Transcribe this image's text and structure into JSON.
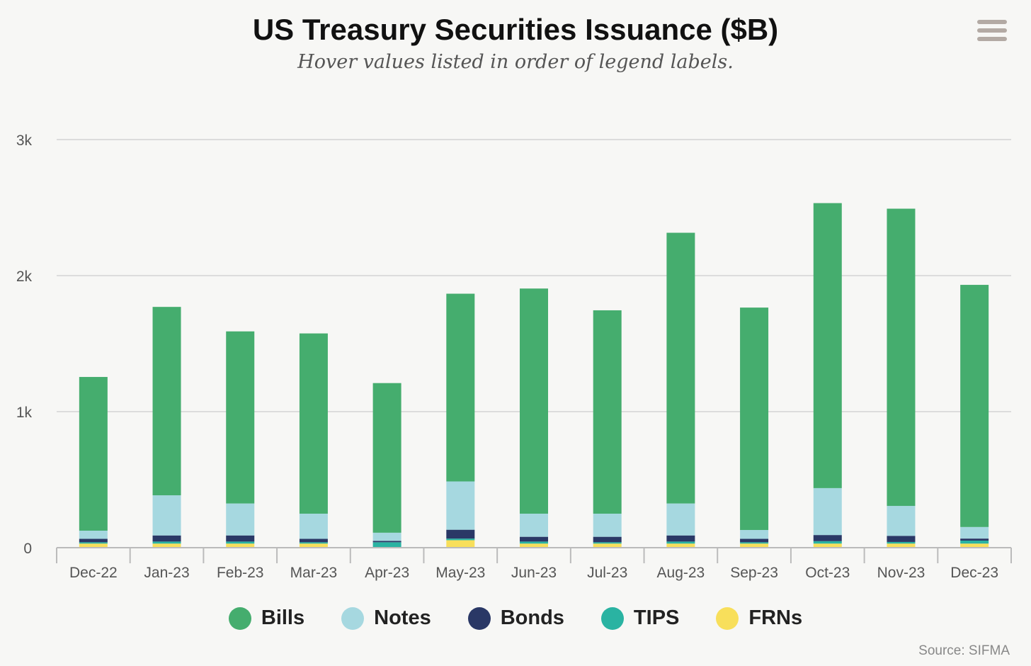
{
  "title": "US Treasury Securities Issuance ($B)",
  "subtitle": "Hover values listed in order of legend labels.",
  "source": "Source: SIFMA",
  "menu_icon": "hamburger-menu-icon",
  "chart_data": {
    "type": "bar",
    "stacked": true,
    "categories": [
      "Dec-22",
      "Jan-23",
      "Feb-23",
      "Mar-23",
      "Apr-23",
      "May-23",
      "Jun-23",
      "Jul-23",
      "Aug-23",
      "Sep-23",
      "Oct-23",
      "Nov-23",
      "Dec-23"
    ],
    "yticks": [
      0,
      1000,
      2000,
      3000
    ],
    "ytick_labels": [
      "0",
      "1k",
      "2k",
      "3k"
    ],
    "ylim": [
      0,
      3000
    ],
    "grid": true,
    "legend_position": "bottom-center",
    "series": [
      {
        "name": "FRNs",
        "color": "#f8df5b",
        "values": [
          30,
          30,
          30,
          30,
          0,
          55,
          30,
          30,
          30,
          30,
          30,
          30,
          30
        ]
      },
      {
        "name": "TIPS",
        "color": "#2ab3a2",
        "values": [
          10,
          15,
          15,
          10,
          40,
          12,
          15,
          10,
          15,
          10,
          18,
          12,
          22
        ]
      },
      {
        "name": "Bonds",
        "color": "#2a3866",
        "values": [
          25,
          45,
          45,
          25,
          10,
          65,
          35,
          40,
          45,
          25,
          45,
          45,
          15
        ]
      },
      {
        "name": "Notes",
        "color": "#a6d8e0",
        "values": [
          60,
          295,
          235,
          185,
          60,
          355,
          170,
          170,
          235,
          65,
          345,
          220,
          85
        ]
      },
      {
        "name": "Bills",
        "color": "#45ad6e",
        "values": [
          1130,
          1385,
          1265,
          1325,
          1100,
          1380,
          1655,
          1495,
          1990,
          1635,
          2095,
          2185,
          1780
        ]
      }
    ],
    "legend_order": [
      "Bills",
      "Notes",
      "Bonds",
      "TIPS",
      "FRNs"
    ]
  }
}
